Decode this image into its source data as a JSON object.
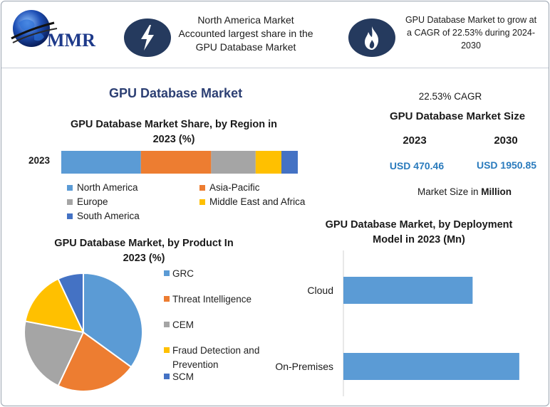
{
  "header": {
    "logo_text": "MMR",
    "box1_text": "North America Market Accounted largest share in the GPU Database Market",
    "box1_lines": [
      "North America Market",
      "Accounted largest share in the",
      "GPU Database Market"
    ],
    "box2_lines": [
      "GPU Database Market to grow at",
      "a CAGR of 22.53% during 2024-",
      "2030"
    ],
    "box1_icon": "lightning-icon",
    "box2_icon": "flame-icon"
  },
  "main_title": "GPU Database Market",
  "summary": {
    "cagr": "22.53% CAGR",
    "size_title": "GPU Database Market Size",
    "year_a": "2023",
    "year_b": "2030",
    "value_a": "USD 470.46",
    "value_b": "USD 1950.85",
    "unit_prefix": "Market Size in ",
    "unit_bold": "Million"
  },
  "colors": {
    "blue": "#5b9bd5",
    "orange": "#ed7d31",
    "gray": "#a5a5a5",
    "yellow": "#ffc000",
    "darkblue": "#4472c4",
    "navy": "#253a5e"
  },
  "chart_data": [
    {
      "type": "bar",
      "orientation": "horizontal-stacked",
      "title_lines": [
        "GPU Database Market Share, by Region in",
        "2023 (%)"
      ],
      "categories": [
        "2023"
      ],
      "series": [
        {
          "name": "North America",
          "values": [
            34
          ],
          "color": "#5b9bd5"
        },
        {
          "name": "Asia-Pacific",
          "values": [
            30
          ],
          "color": "#ed7d31"
        },
        {
          "name": "Europe",
          "values": [
            19
          ],
          "color": "#a5a5a5"
        },
        {
          "name": "Middle East and Africa",
          "values": [
            11
          ],
          "color": "#ffc000"
        },
        {
          "name": "South America",
          "values": [
            7
          ],
          "color": "#4472c4"
        }
      ],
      "legend": "bottom"
    },
    {
      "type": "pie",
      "title_lines": [
        "GPU Database Market, by Product In",
        "2023 (%)"
      ],
      "labels": [
        "GRC",
        "Threat Intelligence",
        "CEM",
        "Fraud Detection and Prevention",
        "SCM"
      ],
      "legend_lines": [
        [
          "GRC"
        ],
        [
          "Threat Intelligence"
        ],
        [
          "CEM"
        ],
        [
          "Fraud Detection and",
          "Prevention"
        ],
        [
          "SCM"
        ]
      ],
      "values": [
        35,
        22,
        21,
        15,
        7
      ],
      "colors": [
        "#5b9bd5",
        "#ed7d31",
        "#a5a5a5",
        "#ffc000",
        "#4472c4"
      ],
      "legend": "right"
    },
    {
      "type": "bar",
      "orientation": "horizontal",
      "title_lines": [
        "GPU Database Market, by Deployment",
        "Model in 2023 (Mn)"
      ],
      "categories": [
        "Cloud",
        "On-Premises"
      ],
      "values": [
        180,
        245
      ],
      "xlim": [
        0,
        260
      ],
      "color": "#5b9bd5"
    }
  ]
}
